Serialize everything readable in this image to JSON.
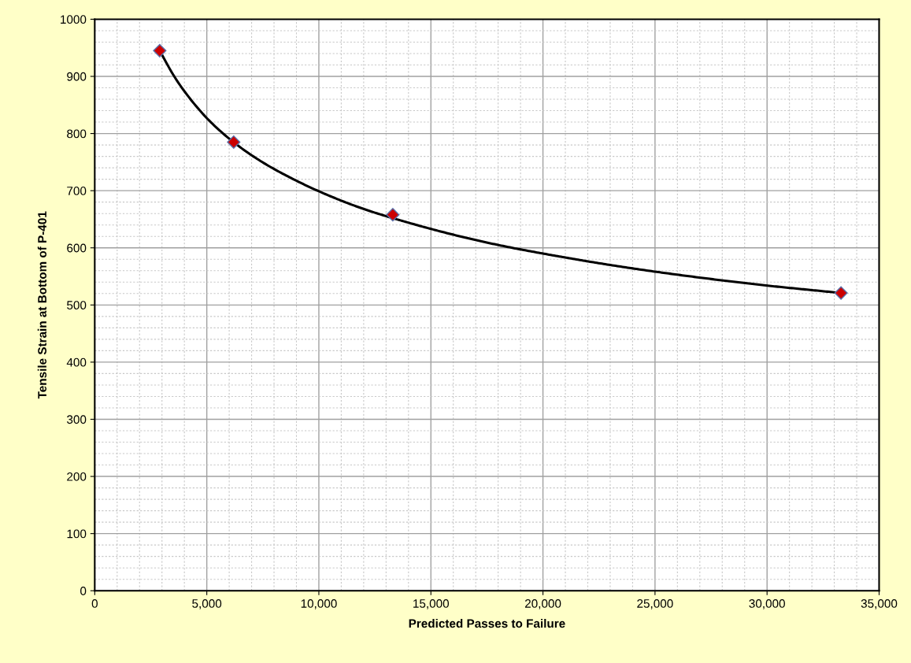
{
  "chart_data": {
    "type": "scatter",
    "xlabel": "Predicted Passes to Failure",
    "ylabel": "Tensile Strain at Bottom of P-401",
    "x": [
      2900,
      6200,
      13300,
      33300
    ],
    "series": [
      {
        "color": "#cc0000",
        "values": [
          945,
          785,
          658,
          521
        ]
      },
      {
        "type": "line",
        "marker": "none",
        "color": "#000000",
        "x": [
          2900,
          3500,
          4000,
          5000,
          6000,
          7000,
          8000,
          10000,
          12000,
          14000,
          16000,
          18000,
          20000,
          23000,
          26000,
          30000,
          33300
        ],
        "values": [
          945,
          903,
          874,
          827,
          791,
          762,
          738,
          699,
          668,
          644,
          623,
          605,
          590,
          570,
          553,
          534,
          521
        ]
      }
    ],
    "marker": "diamond",
    "line_style": "solid",
    "xlim": [
      0,
      35000
    ],
    "xticks": [
      {
        "value": 0,
        "label": "0"
      },
      {
        "value": 5000,
        "label": "5,000"
      },
      {
        "value": 10000,
        "label": "10,000"
      },
      {
        "value": 15000,
        "label": "15,000"
      },
      {
        "value": 20000,
        "label": "20,000"
      },
      {
        "value": 25000,
        "label": "25,000"
      },
      {
        "value": 30000,
        "label": "30,000"
      },
      {
        "value": 35000,
        "label": "35,000"
      }
    ],
    "ylim": [
      0,
      1000
    ],
    "yticks": [
      0,
      100,
      200,
      300,
      400,
      500,
      600,
      700,
      800,
      900,
      1000
    ],
    "grid": true
  }
}
